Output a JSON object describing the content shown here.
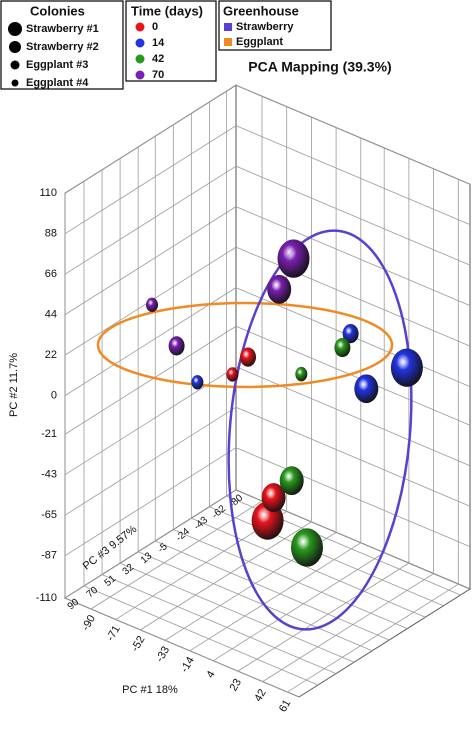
{
  "chart_data": {
    "type": "scatter3d",
    "title": "PCA Mapping (39.3%)",
    "xlabel": "PC #1 18%",
    "ylabel": "PC #2 11.7%",
    "zlabel": "PC #3 9.57%",
    "xlim": [
      -110,
      70
    ],
    "xticks": [
      -90,
      -71,
      -52,
      -33,
      -14,
      4,
      23,
      42,
      61
    ],
    "ylim": [
      -110,
      110
    ],
    "yticks": [
      -110,
      -87,
      -65,
      -43,
      -21,
      0,
      22,
      44,
      66,
      88,
      110
    ],
    "zlim": [
      -90,
      90
    ],
    "zticks": [
      -80,
      -62,
      -43,
      -24,
      -5,
      13,
      32,
      51,
      70,
      90
    ],
    "grid": true,
    "colonies": {
      "title": "Colonies",
      "names": [
        "Strawberry #1",
        "Strawberry #2",
        "Eggplant #3",
        "Eggplant #4"
      ]
    },
    "time_title": "Time (days)",
    "series": [
      {
        "name": "0",
        "color": "#e8141c",
        "x": [
          2,
          -8,
          -35,
          -47
        ],
        "y": [
          -54,
          -51,
          14,
          1
        ],
        "z": [
          30,
          10,
          0,
          0
        ]
      },
      {
        "name": "14",
        "color": "#2233e0",
        "x": [
          58,
          56,
          22,
          -52
        ],
        "y": [
          23,
          24,
          34,
          5
        ],
        "z": [
          -40,
          0,
          -30,
          30
        ]
      },
      {
        "name": "42",
        "color": "#2a9a1e",
        "x": [
          25,
          -16,
          23,
          6
        ],
        "y": [
          -65,
          -54,
          30,
          17
        ],
        "z": [
          20,
          -20,
          -20,
          0
        ]
      },
      {
        "name": "70",
        "color": "#7a1fb0",
        "x": [
          0,
          -11,
          -68,
          -65
        ],
        "y": [
          78,
          58,
          20,
          53
        ],
        "z": [
          0,
          0,
          30,
          60
        ]
      }
    ],
    "greenhouse": {
      "title": "Greenhouse",
      "names": [
        "Strawberry",
        "Eggplant"
      ],
      "colors": [
        "#5a3fd0",
        "#f08a24"
      ]
    }
  }
}
